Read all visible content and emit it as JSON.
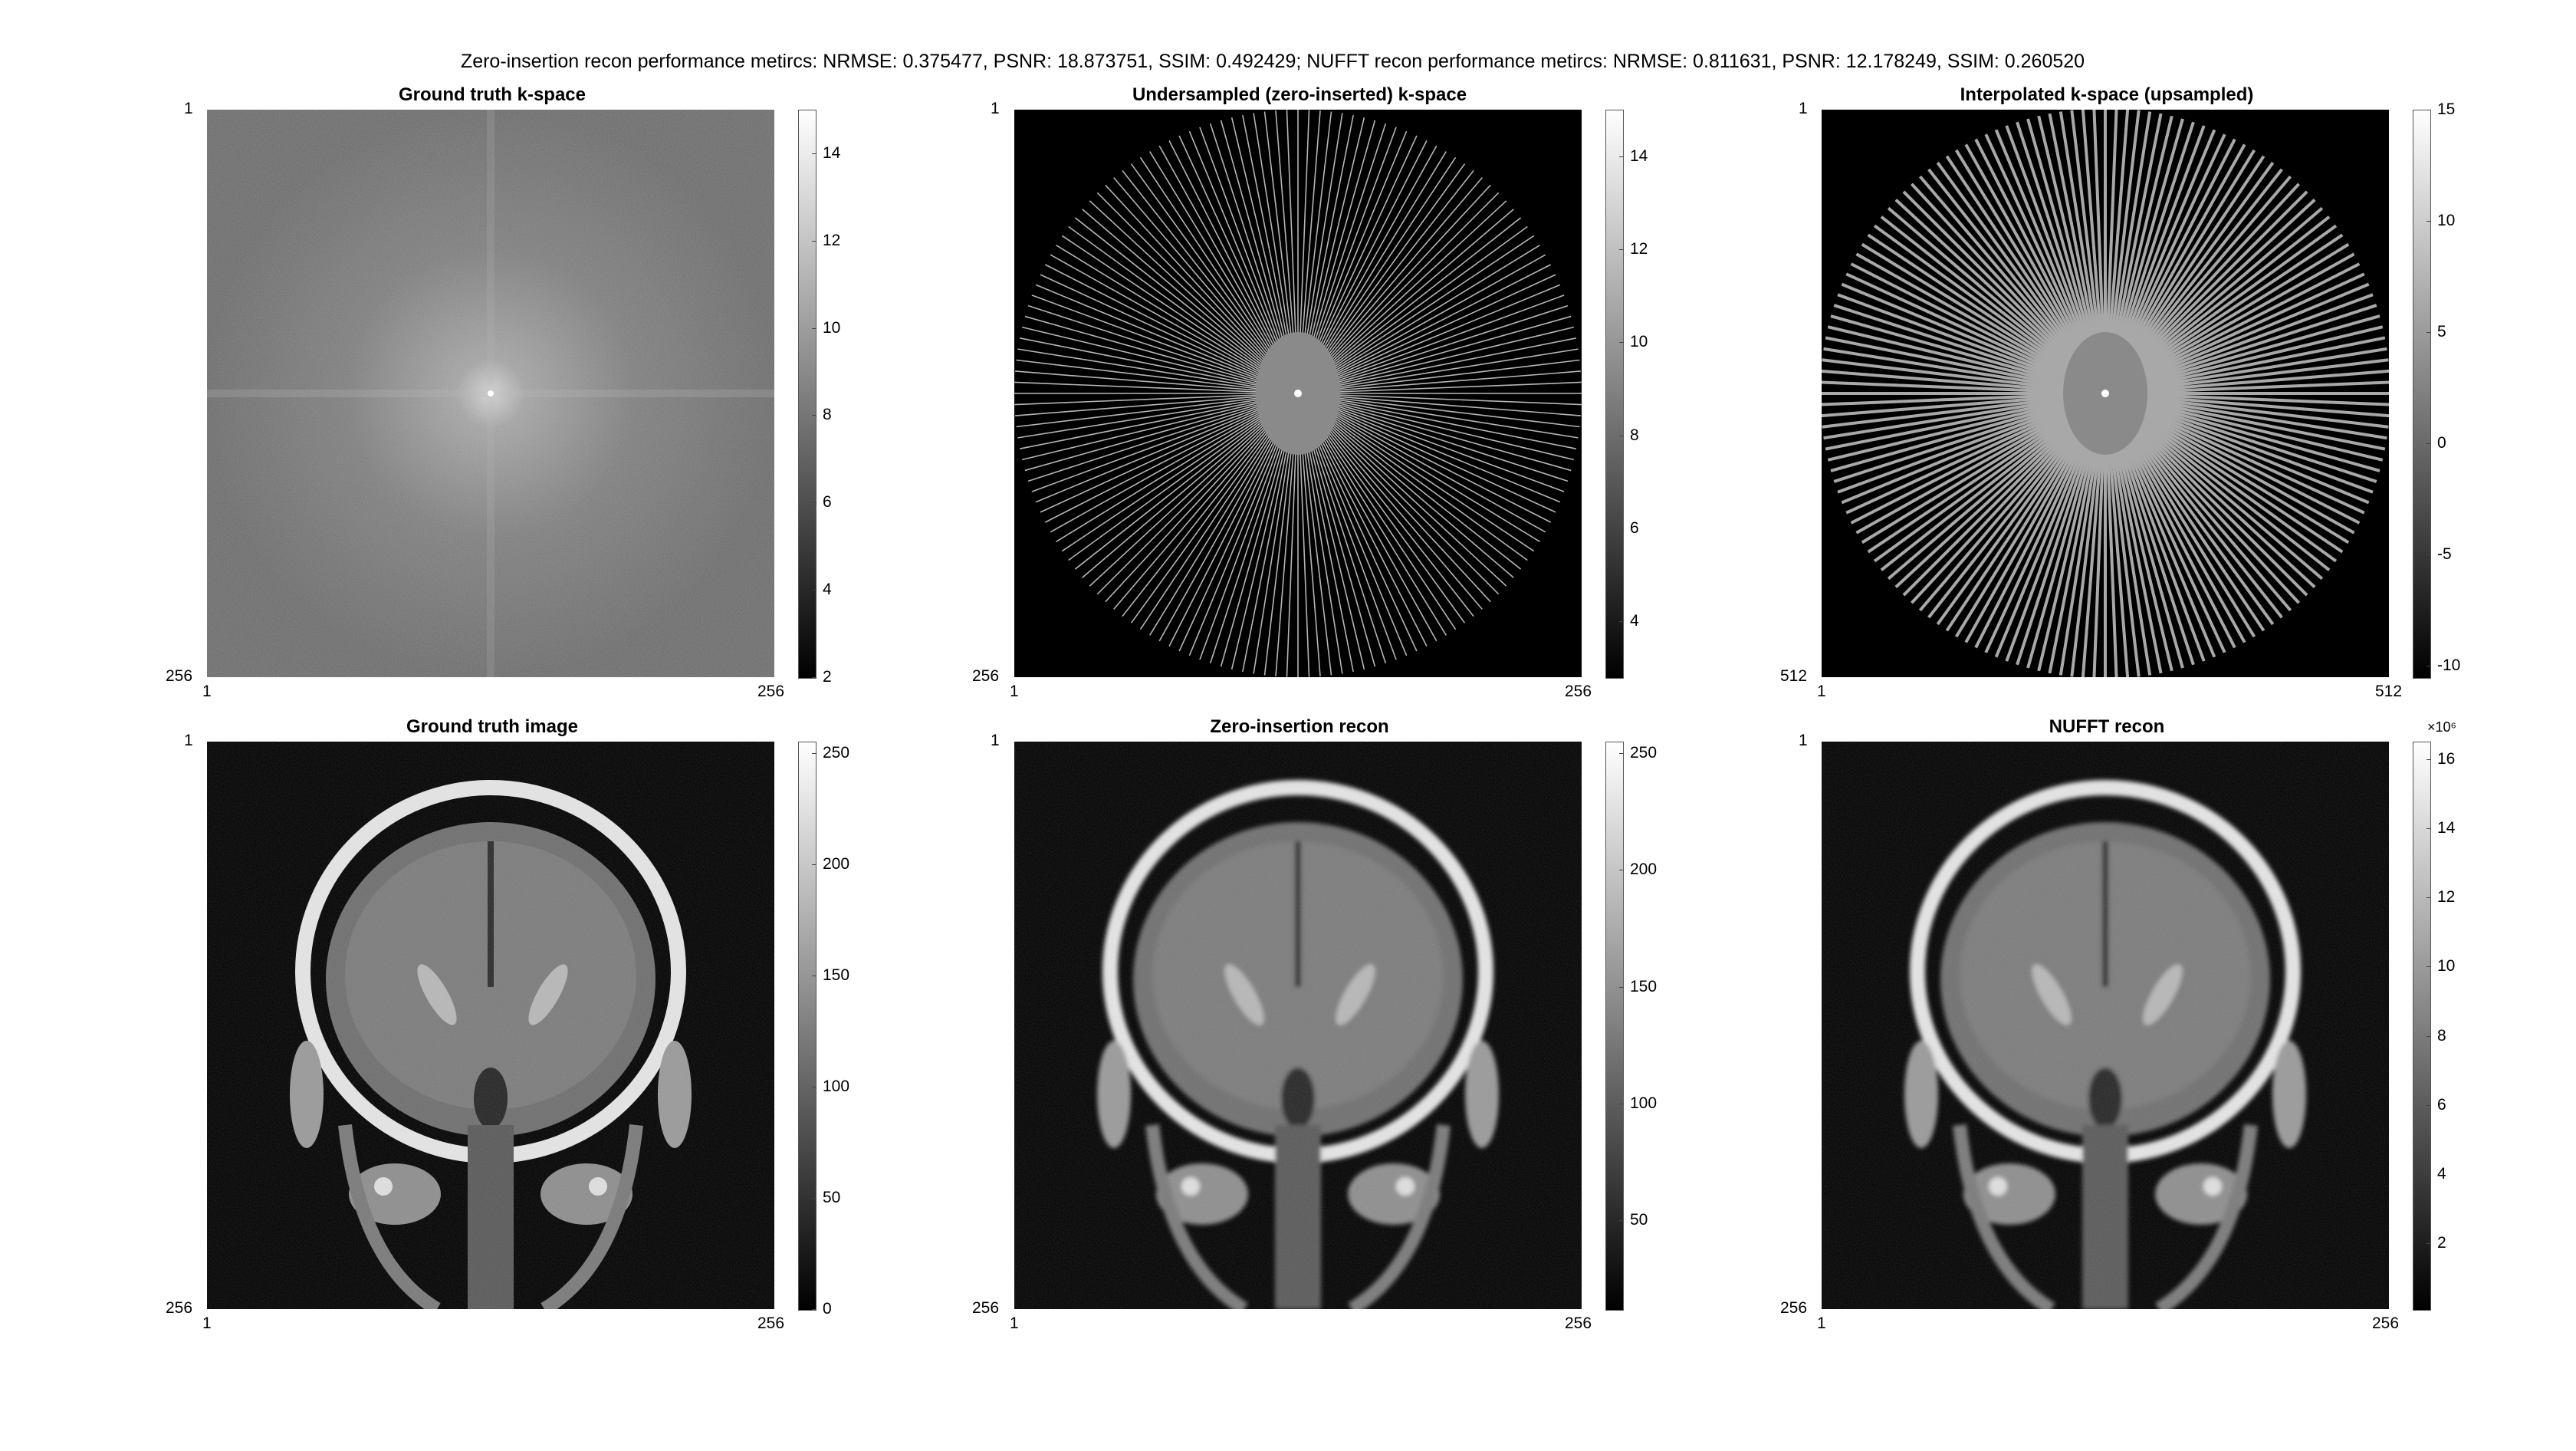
{
  "figure": {
    "suptitle": "Zero-insertion recon performance metircs: NRMSE: 0.375477, PSNR: 18.873751, SSIM: 0.492429; NUFFT recon performance metircs: NRMSE: 0.811631, PSNR: 12.178249, SSIM: 0.260520"
  },
  "colormap": {
    "low": "#000000",
    "high": "#ffffff"
  },
  "panels": [
    {
      "title": "Ground truth k-space",
      "axis": {
        "min": "1",
        "max": "256"
      },
      "colorbar": {
        "ticks": [
          "14",
          "12",
          "10",
          "8",
          "6",
          "4",
          "2"
        ],
        "values": [
          14,
          12,
          10,
          8,
          6,
          4,
          2
        ],
        "range": [
          2,
          15
        ],
        "exponent": ""
      }
    },
    {
      "title": "Undersampled (zero-inserted) k-space",
      "axis": {
        "min": "1",
        "max": "256"
      },
      "colorbar": {
        "ticks": [
          "14",
          "12",
          "10",
          "8",
          "6",
          "4"
        ],
        "values": [
          14,
          12,
          10,
          8,
          6,
          4
        ],
        "range": [
          2.8,
          15
        ],
        "exponent": ""
      }
    },
    {
      "title": "Interpolated k-space (upsampled)",
      "axis": {
        "min": "1",
        "max": "512"
      },
      "colorbar": {
        "ticks": [
          "15",
          "10",
          "5",
          "0",
          "-5",
          "-10"
        ],
        "values": [
          15,
          10,
          5,
          0,
          -5,
          -10
        ],
        "range": [
          -10.5,
          15
        ],
        "exponent": ""
      }
    },
    {
      "title": "Ground truth image",
      "axis": {
        "min": "1",
        "max": "256"
      },
      "colorbar": {
        "ticks": [
          "250",
          "200",
          "150",
          "100",
          "50",
          "0"
        ],
        "values": [
          250,
          200,
          150,
          100,
          50,
          0
        ],
        "range": [
          0,
          255
        ],
        "exponent": ""
      }
    },
    {
      "title": "Zero-insertion recon",
      "axis": {
        "min": "1",
        "max": "256"
      },
      "colorbar": {
        "ticks": [
          "250",
          "200",
          "150",
          "100",
          "50"
        ],
        "values": [
          250,
          200,
          150,
          100,
          50
        ],
        "range": [
          12,
          255
        ],
        "exponent": ""
      }
    },
    {
      "title": "NUFFT recon",
      "axis": {
        "min": "1",
        "max": "256"
      },
      "colorbar": {
        "ticks": [
          "16",
          "14",
          "12",
          "10",
          "8",
          "6",
          "4",
          "2"
        ],
        "values": [
          16,
          14,
          12,
          10,
          8,
          6,
          4,
          2
        ],
        "range": [
          0.1,
          16.5
        ],
        "exponent": "×10⁶"
      }
    }
  ]
}
